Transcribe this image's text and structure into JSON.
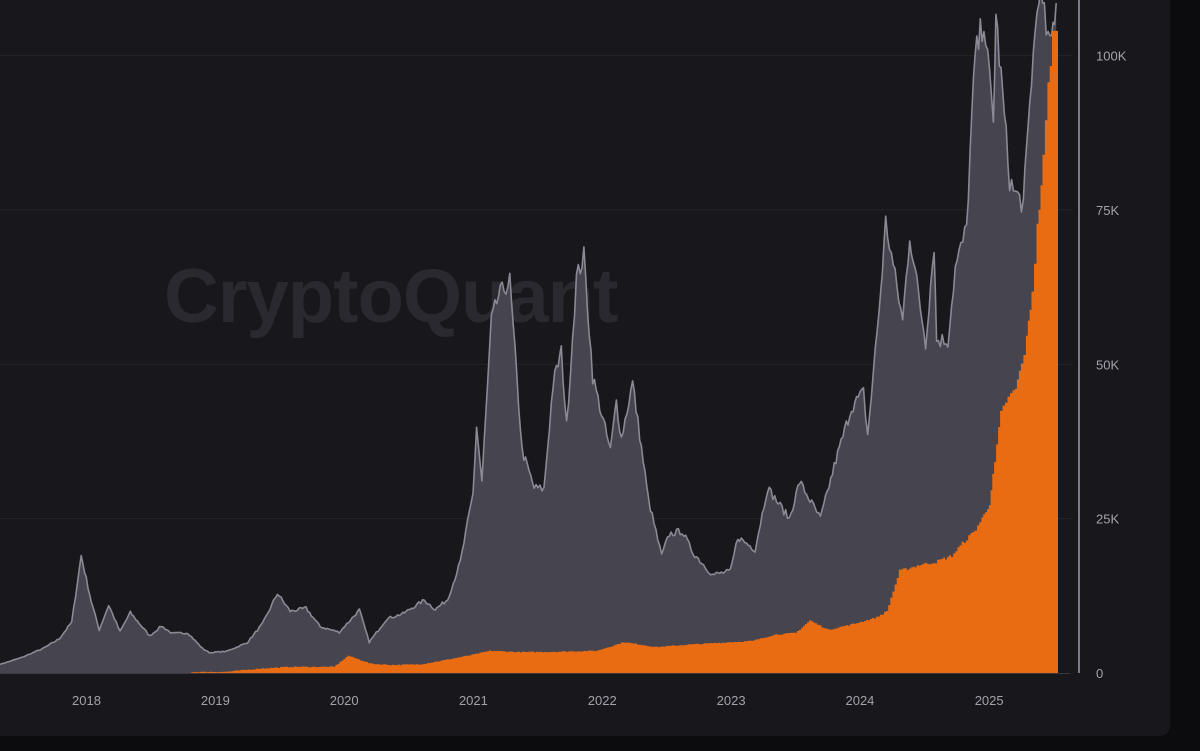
{
  "watermark": "CryptoQuant",
  "colors": {
    "background": "#18171c",
    "price_fill": "#46454f",
    "price_line": "#8a8994",
    "orange_fill": "#ea6c12",
    "grid": "#26252b",
    "tick_text": "#a3a2ab"
  },
  "chart_data": {
    "type": "area",
    "title": "",
    "xlabel": "",
    "ylabel": "",
    "x_ticks": [
      "2018",
      "2019",
      "2020",
      "2021",
      "2022",
      "2023",
      "2024",
      "2025"
    ],
    "y_ticks": [
      "0",
      "25K",
      "50K",
      "75K",
      "100K"
    ],
    "ylim": [
      0,
      109000
    ],
    "xlim": [
      "2017-05-01",
      "2025-07-15"
    ],
    "grid": true,
    "y_axis_position": "right",
    "series": [
      {
        "style": "area-with-line",
        "x": [
          "2017-05-01",
          "2017-07-01",
          "2017-09-01",
          "2017-10-15",
          "2017-11-20",
          "2017-12-17",
          "2018-01-15",
          "2018-02-06",
          "2018-03-05",
          "2018-04-06",
          "2018-05-05",
          "2018-06-29",
          "2018-08-01",
          "2018-09-01",
          "2018-10-15",
          "2018-11-25",
          "2018-12-15",
          "2019-02-01",
          "2019-04-01",
          "2019-05-15",
          "2019-06-26",
          "2019-08-01",
          "2019-09-15",
          "2019-10-25",
          "2019-12-18",
          "2020-02-13",
          "2020-03-12",
          "2020-05-01",
          "2020-06-15",
          "2020-08-15",
          "2020-09-15",
          "2020-10-20",
          "2020-11-25",
          "2020-12-31",
          "2021-01-10",
          "2021-01-25",
          "2021-02-21",
          "2021-03-13",
          "2021-04-14",
          "2021-05-19",
          "2021-06-22",
          "2021-07-20",
          "2021-08-15",
          "2021-09-07",
          "2021-09-22",
          "2021-10-20",
          "2021-11-10",
          "2021-12-05",
          "2022-01-24",
          "2022-02-10",
          "2022-02-24",
          "2022-03-28",
          "2022-05-12",
          "2022-06-18",
          "2022-07-10",
          "2022-08-15",
          "2022-09-15",
          "2022-11-09",
          "2022-12-30",
          "2023-01-20",
          "2023-03-10",
          "2023-04-14",
          "2023-06-15",
          "2023-07-14",
          "2023-09-11",
          "2023-10-25",
          "2023-12-08",
          "2024-01-11",
          "2024-01-23",
          "2024-02-29",
          "2024-03-14",
          "2024-05-01",
          "2024-05-21",
          "2024-07-05",
          "2024-07-29",
          "2024-08-05",
          "2024-09-06",
          "2024-09-27",
          "2024-10-29",
          "2024-11-13",
          "2024-11-22",
          "2024-12-17",
          "2025-01-13",
          "2025-01-20",
          "2025-02-28",
          "2025-03-11",
          "2025-04-08",
          "2025-05-01",
          "2025-05-22",
          "2025-06-22",
          "2025-07-10"
        ],
        "values": [
          1400,
          2500,
          4000,
          5500,
          8200,
          19000,
          11500,
          7000,
          11000,
          6700,
          9800,
          6000,
          7600,
          6400,
          6500,
          4000,
          3300,
          3500,
          4900,
          8000,
          12900,
          10000,
          10500,
          7500,
          6600,
          10200,
          5000,
          8800,
          9600,
          11800,
          10300,
          11900,
          18000,
          29000,
          40000,
          31000,
          57000,
          61000,
          63500,
          36000,
          30000,
          29800,
          47000,
          52000,
          40000,
          64000,
          67500,
          48000,
          36000,
          44000,
          38000,
          47000,
          28000,
          19000,
          22500,
          23000,
          19500,
          15900,
          16500,
          22000,
          20000,
          30000,
          25000,
          31000,
          25000,
          34500,
          43000,
          45500,
          38500,
          62000,
          73000,
          57000,
          71000,
          53500,
          69500,
          54000,
          53800,
          65500,
          72000,
          90000,
          99500,
          106000,
          89000,
          106500,
          80000,
          78000,
          76000,
          96500,
          111000,
          101000,
          108500
        ]
      },
      {
        "style": "stepped-area",
        "x": [
          "2018-10-25",
          "2019-02-01",
          "2019-05-01",
          "2019-08-01",
          "2019-10-01",
          "2019-12-01",
          "2020-01-10",
          "2020-03-15",
          "2020-05-15",
          "2020-08-01",
          "2020-10-01",
          "2020-12-15",
          "2021-02-15",
          "2021-05-01",
          "2021-07-15",
          "2021-10-01",
          "2021-12-15",
          "2022-03-01",
          "2022-06-01",
          "2022-09-01",
          "2022-12-01",
          "2023-03-01",
          "2023-05-01",
          "2023-07-01",
          "2023-08-10",
          "2023-10-01",
          "2023-12-15",
          "2024-02-15",
          "2024-03-15",
          "2024-04-20",
          "2024-06-15",
          "2024-08-01",
          "2024-09-15",
          "2024-10-15",
          "2024-11-15",
          "2024-12-10",
          "2024-12-31",
          "2025-01-15",
          "2025-02-01",
          "2025-02-15",
          "2025-03-01",
          "2025-03-15",
          "2025-04-01",
          "2025-04-15",
          "2025-05-01",
          "2025-05-15",
          "2025-06-01",
          "2025-06-15",
          "2025-06-28"
        ],
        "values": [
          150,
          200,
          700,
          1000,
          1000,
          1000,
          2800,
          1500,
          1300,
          1400,
          2000,
          2800,
          3600,
          3400,
          3400,
          3500,
          3600,
          5000,
          4200,
          4600,
          4900,
          5200,
          6200,
          6500,
          8500,
          7000,
          8000,
          9000,
          10000,
          16500,
          17500,
          18000,
          19000,
          21000,
          22800,
          25000,
          27500,
          34000,
          42000,
          44000,
          45000,
          46000,
          50000,
          54000,
          62000,
          72000,
          83000,
          95000,
          104000
        ]
      }
    ]
  }
}
